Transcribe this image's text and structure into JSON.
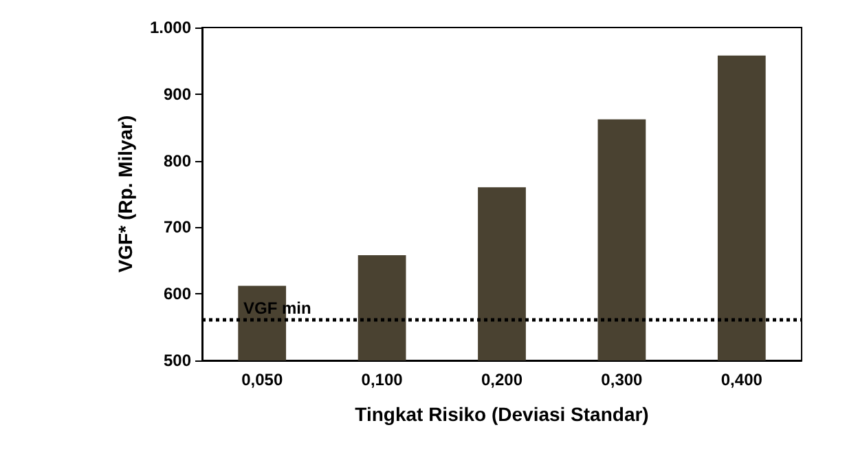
{
  "chart_data": {
    "type": "bar",
    "xlabel": "Tingkat Risiko (Deviasi Standar)",
    "ylabel": "VGF* (Rp. Milyar)",
    "categories": [
      "0,050",
      "0,100",
      "0,200",
      "0,300",
      "0,400"
    ],
    "values": [
      612,
      658,
      760,
      862,
      958
    ],
    "color": "#4a4231",
    "ylim": [
      500,
      1000
    ],
    "yticks": [
      500,
      600,
      700,
      800,
      900,
      {
        "value": 1000,
        "label": "1.000"
      }
    ],
    "grid": false,
    "ref_lines": [
      {
        "axis": "y",
        "value": 562,
        "label": "VGF min",
        "color": "#000000",
        "line_style": "dotted"
      }
    ]
  }
}
